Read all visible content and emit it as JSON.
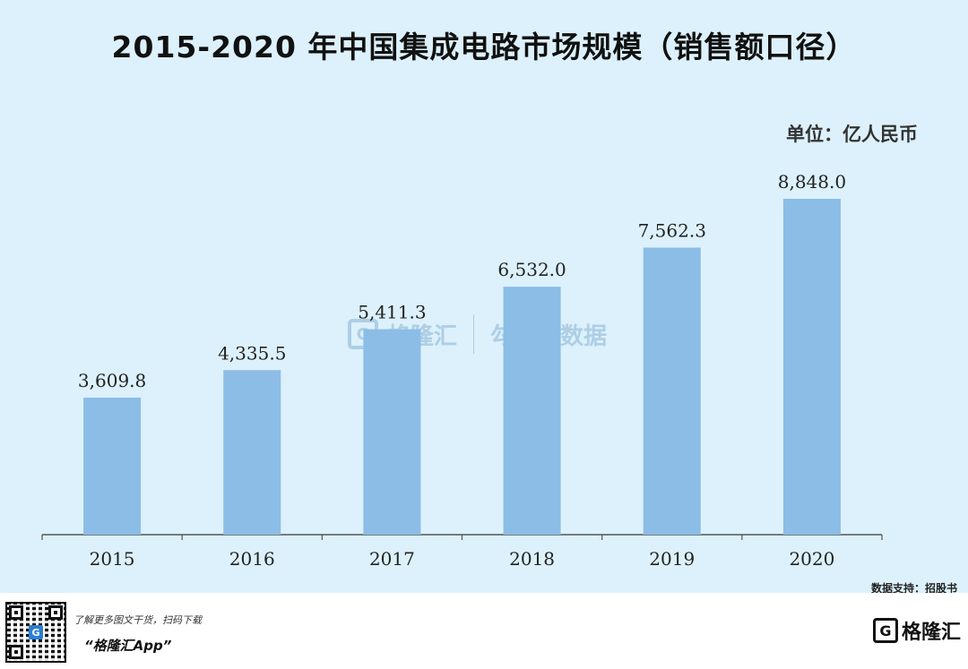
{
  "title": "2015-2020 年中国集成电路市场规模（销售额口径）",
  "unit": "单位：亿人民币",
  "source": "数据支持：招股书",
  "footer": {
    "promo_line": "了解更多图文干货，扫码下载",
    "promo_app": "“格隆汇App”",
    "brand": "格隆汇",
    "brand_mark": "G"
  },
  "watermark": {
    "left": "格隆汇",
    "right": "勾股大数据"
  },
  "colors": {
    "background": "#dcf1fb",
    "bar": "#8bbde6",
    "axis": "#555555"
  },
  "chart_data": {
    "type": "bar",
    "categories": [
      "2015",
      "2016",
      "2017",
      "2018",
      "2019",
      "2020"
    ],
    "values": [
      3609.8,
      4335.5,
      5411.3,
      6532.0,
      7562.3,
      8848.0
    ],
    "value_labels": [
      "3,609.8",
      "4,335.5",
      "5,411.3",
      "6,532.0",
      "7,562.3",
      "8,848.0"
    ],
    "title": "2015-2020 年中国集成电路市场规模（销售额口径）",
    "xlabel": "",
    "ylabel": "",
    "ylim": [
      0,
      10000
    ],
    "grid": false,
    "legend": "none"
  }
}
